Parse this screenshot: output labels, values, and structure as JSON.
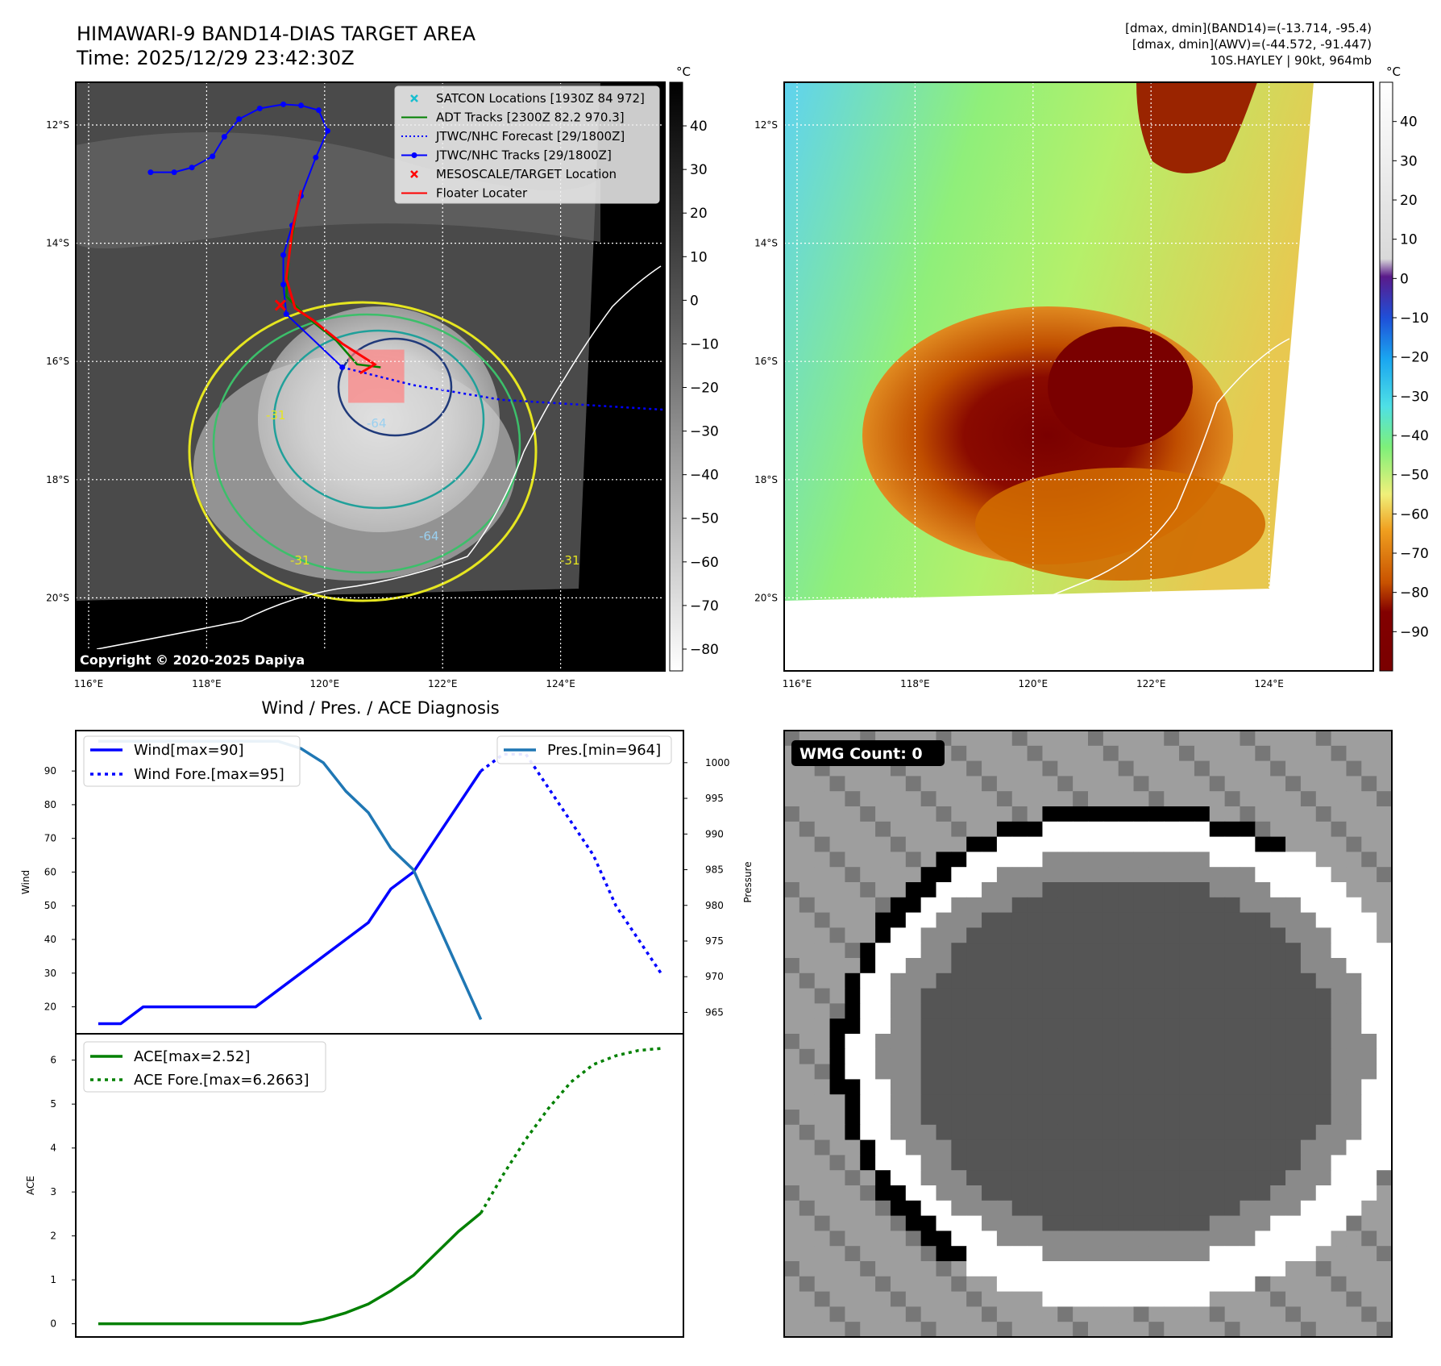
{
  "header": {
    "title_line1": "HIMAWARI-9 BAND14-DIAS TARGET AREA",
    "title_line2": "Time: 2025/12/29 23:42:30Z",
    "info_line1": "[dmax, dmin](BAND14)=(-13.714, -95.4)",
    "info_line2": "[dmax, dmin](AWV)=(-44.572, -91.447)",
    "info_line3": "10S.HAYLEY | 90kt, 964mb"
  },
  "map": {
    "lat_labels": [
      "12°S",
      "14°S",
      "16°S",
      "18°S",
      "20°S"
    ],
    "lon_labels": [
      "116°E",
      "118°E",
      "120°E",
      "122°E",
      "124°E"
    ],
    "copyright": "Copyright © 2020-2025 Dapiya",
    "legend": [
      {
        "label": "SATCON Locations [1930Z 84 972]",
        "color": "#17becf",
        "symbol": "x"
      },
      {
        "label": "ADT Tracks [2300Z 82.2 970.3]",
        "color": "#008000",
        "symbol": "line"
      },
      {
        "label": "JTWC/NHC Forecast [29/1800Z]",
        "color": "#0000ff",
        "symbol": "dotted"
      },
      {
        "label": "JTWC/NHC Tracks [29/1800Z]",
        "color": "#0000ff",
        "symbol": "line-dot"
      },
      {
        "label": "MESOSCALE/TARGET Location",
        "color": "#ff0000",
        "symbol": "x"
      },
      {
        "label": "Floater Locater",
        "color": "#ff0000",
        "symbol": "line"
      }
    ],
    "contour_labels": [
      "-64",
      "-31",
      "-31",
      "-64",
      "-31"
    ],
    "colorbar_unit": "°C",
    "colorbar_ticks": [
      "40",
      "30",
      "20",
      "10",
      "0",
      "−10",
      "−20",
      "−30",
      "−40",
      "−50",
      "−60",
      "−70",
      "−80"
    ],
    "colorbar_values": [
      40,
      30,
      20,
      10,
      0,
      -10,
      -20,
      -30,
      -40,
      -50,
      -60,
      -70,
      -80
    ],
    "colorbar_range": [
      -85,
      50
    ],
    "track_points": [
      {
        "lon": 117.05,
        "lat": -12.8
      },
      {
        "lon": 117.45,
        "lat": -12.8
      },
      {
        "lon": 117.75,
        "lat": -12.72
      },
      {
        "lon": 118.1,
        "lat": -12.53
      },
      {
        "lon": 118.3,
        "lat": -12.2
      },
      {
        "lon": 118.55,
        "lat": -11.9
      },
      {
        "lon": 118.9,
        "lat": -11.72
      },
      {
        "lon": 119.3,
        "lat": -11.65
      },
      {
        "lon": 119.6,
        "lat": -11.67
      },
      {
        "lon": 119.9,
        "lat": -11.75
      },
      {
        "lon": 120.05,
        "lat": -12.1
      },
      {
        "lon": 119.85,
        "lat": -12.55
      },
      {
        "lon": 119.6,
        "lat": -13.2
      },
      {
        "lon": 119.45,
        "lat": -13.7
      },
      {
        "lon": 119.3,
        "lat": -14.2
      },
      {
        "lon": 119.3,
        "lat": -14.7
      },
      {
        "lon": 119.35,
        "lat": -15.2
      },
      {
        "lon": 120.3,
        "lat": -16.1
      }
    ],
    "forecast_points": [
      {
        "lon": 120.3,
        "lat": -16.1
      },
      {
        "lon": 121.5,
        "lat": -16.4
      },
      {
        "lon": 123.0,
        "lat": -16.65
      },
      {
        "lon": 125.8,
        "lat": -16.82
      }
    ],
    "floater_track": [
      {
        "lon": 119.6,
        "lat": -13.1
      },
      {
        "lon": 119.45,
        "lat": -13.8
      },
      {
        "lon": 119.35,
        "lat": -14.6
      },
      {
        "lon": 119.5,
        "lat": -15.1
      },
      {
        "lon": 119.8,
        "lat": -15.3
      },
      {
        "lon": 120.3,
        "lat": -15.7
      },
      {
        "lon": 120.85,
        "lat": -16.05
      },
      {
        "lon": 120.6,
        "lat": -16.2
      }
    ],
    "adt_track": [
      {
        "lon": 119.55,
        "lat": -13.3
      },
      {
        "lon": 119.4,
        "lat": -14.2
      },
      {
        "lon": 119.35,
        "lat": -14.9
      },
      {
        "lon": 119.7,
        "lat": -15.25
      },
      {
        "lon": 120.2,
        "lat": -15.65
      },
      {
        "lon": 120.55,
        "lat": -16.05
      },
      {
        "lon": 120.95,
        "lat": -16.1
      }
    ],
    "target_location": {
      "lon": 119.25,
      "lat": -15.05
    },
    "target_box": {
      "lon_min": 120.4,
      "lon_max": 121.35,
      "lat_min": -16.7,
      "lat_max": -15.8
    }
  },
  "awv_panel": {
    "colorbar_unit": "°C",
    "colorbar_ticks": [
      "40",
      "30",
      "20",
      "10",
      "0",
      "−10",
      "−20",
      "−30",
      "−40",
      "−50",
      "−60",
      "−70",
      "−80",
      "−90"
    ],
    "colorbar_values": [
      40,
      30,
      20,
      10,
      0,
      -10,
      -20,
      -30,
      -40,
      -50,
      -60,
      -70,
      -80,
      -90
    ],
    "colorbar_range": [
      -100,
      50
    ]
  },
  "diagnosis": {
    "title": "Wind / Pres. / ACE Diagnosis",
    "wind_ylabel": "Wind",
    "pressure_ylabel": "Pressure",
    "ace_ylabel": "ACE",
    "wind_legend": [
      "Wind[max=90]",
      "Wind Fore.[max=95]"
    ],
    "pressure_legend": "Pres.[min=964]",
    "ace_legend": [
      "ACE[max=2.52]",
      "ACE Fore.[max=6.2663]"
    ],
    "wmg_label": "WMG Count: 0"
  },
  "chart_data": [
    {
      "type": "line",
      "title": "Wind / Pres. / ACE Diagnosis",
      "ylabel": "Wind",
      "ylim": [
        12,
        102
      ],
      "yticks": [
        20,
        30,
        40,
        50,
        60,
        70,
        80,
        90
      ],
      "xlim": [
        -1,
        26
      ],
      "series": [
        {
          "name": "Wind[max=90]",
          "x": [
            0,
            1,
            2,
            3,
            4,
            5,
            6,
            7,
            8,
            9,
            10,
            11,
            12,
            13,
            14,
            15,
            16,
            17
          ],
          "values": [
            15,
            15,
            20,
            20,
            20,
            20,
            20,
            20,
            25,
            30,
            35,
            40,
            45,
            55,
            60,
            70,
            80,
            90
          ]
        },
        {
          "name": "Wind Fore.[max=95]",
          "x": [
            17,
            18,
            19,
            20,
            21,
            22,
            23,
            24,
            25
          ],
          "values": [
            90,
            95,
            95,
            85,
            75,
            65,
            50,
            40,
            30
          ]
        }
      ]
    },
    {
      "type": "line",
      "ylabel": "Pressure",
      "ylim": [
        962,
        1004.5
      ],
      "yticks": [
        965,
        970,
        975,
        980,
        985,
        990,
        995,
        1000
      ],
      "xlim": [
        -1,
        26
      ],
      "series": [
        {
          "name": "Pres.[min=964]",
          "x": [
            0,
            1,
            2,
            3,
            4,
            5,
            6,
            7,
            8,
            9,
            10,
            11,
            12,
            13,
            14,
            15,
            16,
            17
          ],
          "values": [
            1003,
            1003,
            1003,
            1003,
            1003,
            1003,
            1003,
            1003,
            1003,
            1002,
            1000,
            996,
            993,
            988,
            985,
            978,
            971,
            964
          ]
        }
      ]
    },
    {
      "type": "line",
      "ylabel": "ACE",
      "ylim": [
        -0.3,
        6.6
      ],
      "yticks": [
        0,
        1,
        2,
        3,
        4,
        5,
        6
      ],
      "xlim": [
        -1,
        26
      ],
      "series": [
        {
          "name": "ACE[max=2.52]",
          "x": [
            0,
            1,
            2,
            3,
            4,
            5,
            6,
            7,
            8,
            9,
            10,
            11,
            12,
            13,
            14,
            15,
            16,
            17
          ],
          "values": [
            0,
            0,
            0,
            0,
            0,
            0,
            0,
            0,
            0,
            0,
            0.1,
            0.25,
            0.45,
            0.75,
            1.1,
            1.6,
            2.1,
            2.52
          ]
        },
        {
          "name": "ACE Fore.[max=6.2663]",
          "x": [
            17,
            18,
            19,
            20,
            21,
            22,
            23,
            24,
            25
          ],
          "values": [
            2.52,
            3.4,
            4.2,
            4.9,
            5.5,
            5.9,
            6.1,
            6.22,
            6.2663
          ]
        }
      ]
    }
  ]
}
